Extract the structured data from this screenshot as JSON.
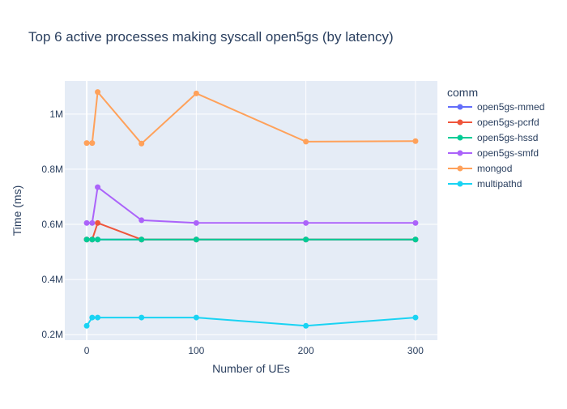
{
  "chart_data": {
    "type": "line",
    "title": "Top 6 active processes making syscall open5gs (by latency)",
    "xlabel": "Number of UEs",
    "ylabel": "Time (ms)",
    "xlim": [
      -20,
      320
    ],
    "ylim": [
      180000,
      1120000
    ],
    "x_ticks": [
      0,
      100,
      200,
      300
    ],
    "x_tick_labels": [
      "0",
      "100",
      "200",
      "300"
    ],
    "y_ticks": [
      200000,
      400000,
      600000,
      800000,
      1000000
    ],
    "y_tick_labels": [
      "0.2M",
      "0.4M",
      "0.6M",
      "0.8M",
      "1M"
    ],
    "grid": true,
    "legend_title": "comm",
    "legend_position": "right",
    "x": [
      0,
      5,
      10,
      50,
      100,
      200,
      300
    ],
    "series": [
      {
        "name": "open5gs-mmed",
        "color": "#636efa",
        "values": [
          545000,
          545000,
          545000,
          545000,
          545000,
          545000,
          545000
        ]
      },
      {
        "name": "open5gs-pcrfd",
        "color": "#ef553b",
        "values": [
          545000,
          545000,
          605000,
          545000,
          545000,
          545000,
          545000
        ]
      },
      {
        "name": "open5gs-hssd",
        "color": "#00cc96",
        "values": [
          545000,
          545000,
          545000,
          545000,
          545000,
          545000,
          545000
        ]
      },
      {
        "name": "open5gs-smfd",
        "color": "#ab63fa",
        "values": [
          605000,
          605000,
          735000,
          615000,
          605000,
          605000,
          605000
        ]
      },
      {
        "name": "mongod",
        "color": "#ffa15a",
        "values": [
          895000,
          895000,
          1080000,
          893000,
          1075000,
          900000,
          902000
        ]
      },
      {
        "name": "multipathd",
        "color": "#19d3f3",
        "values": [
          232000,
          262000,
          262000,
          262000,
          262000,
          232000,
          262000
        ]
      }
    ]
  }
}
